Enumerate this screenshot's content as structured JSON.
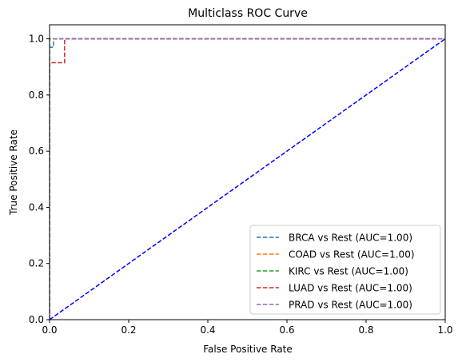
{
  "chart_data": {
    "type": "line",
    "title": "Multiclass ROC Curve",
    "xlabel": "False Positive Rate",
    "ylabel": "True Positive Rate",
    "xlim": [
      0,
      1
    ],
    "ylim": [
      0,
      1.05
    ],
    "xticks": [
      0.0,
      0.2,
      0.4,
      0.6,
      0.8,
      1.0
    ],
    "yticks": [
      0.0,
      0.2,
      0.4,
      0.6,
      0.8,
      1.0
    ],
    "xtick_labels": [
      "0.0",
      "0.2",
      "0.4",
      "0.6",
      "0.8",
      "1.0"
    ],
    "ytick_labels": [
      "0.0",
      "0.2",
      "0.4",
      "0.6",
      "0.8",
      "1.0"
    ],
    "grid": false,
    "legend_position": "lower-right",
    "diagonal": {
      "x": [
        0,
        1
      ],
      "y": [
        0,
        1
      ],
      "color": "#0000ff",
      "style": "dashed"
    },
    "series": [
      {
        "name": "BRCA vs Rest (AUC=1.00)",
        "color": "#1f77b4",
        "style": "dashed",
        "x": [
          0,
          0,
          0.01,
          0.01,
          1
        ],
        "y": [
          0,
          0.97,
          0.97,
          1,
          1
        ]
      },
      {
        "name": "COAD vs Rest (AUC=1.00)",
        "color": "#ff7f0e",
        "style": "dashed",
        "x": [
          0,
          0,
          1
        ],
        "y": [
          0,
          1,
          1
        ]
      },
      {
        "name": "KIRC vs Rest (AUC=1.00)",
        "color": "#2ca02c",
        "style": "dashed",
        "x": [
          0,
          0,
          1
        ],
        "y": [
          0,
          1,
          1
        ]
      },
      {
        "name": "LUAD vs Rest (AUC=1.00)",
        "color": "#d62728",
        "style": "dashed",
        "x": [
          0,
          0,
          0.038,
          0.038,
          1
        ],
        "y": [
          0,
          0.915,
          0.915,
          1,
          1
        ]
      },
      {
        "name": "PRAD vs Rest (AUC=1.00)",
        "color": "#9467bd",
        "style": "dashed",
        "x": [
          0,
          0,
          1
        ],
        "y": [
          0,
          1,
          1
        ]
      }
    ]
  }
}
